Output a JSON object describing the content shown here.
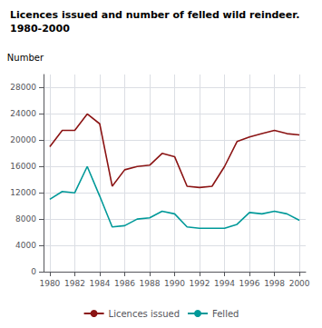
{
  "chart_data": {
    "type": "line",
    "title": "Licences issued and number of felled wild reindeer.",
    "subtitle": "1980-2000",
    "ylabel": "Number",
    "x": [
      1980,
      1981,
      1982,
      1983,
      1984,
      1985,
      1986,
      1987,
      1988,
      1989,
      1990,
      1991,
      1992,
      1993,
      1994,
      1995,
      1996,
      1997,
      1998,
      1999,
      2000
    ],
    "series": [
      {
        "name": "Licences issued",
        "color": "#8B1414",
        "values": [
          19000,
          21500,
          21500,
          24000,
          22500,
          13000,
          15500,
          16000,
          16200,
          18000,
          17500,
          13000,
          12800,
          13000,
          16000,
          19800,
          20500,
          21000,
          21500,
          21000,
          20800
        ]
      },
      {
        "name": "Felled",
        "color": "#009999",
        "values": [
          11000,
          12200,
          12000,
          16000,
          11500,
          6800,
          7000,
          8000,
          8200,
          9200,
          8800,
          6800,
          6600,
          6600,
          6600,
          7200,
          9000,
          8800,
          9200,
          8800,
          7800
        ]
      }
    ],
    "xlim": [
      1979.5,
      2000.5
    ],
    "xticks": [
      1980,
      1982,
      1984,
      1986,
      1988,
      1990,
      1992,
      1994,
      1996,
      1998,
      2000
    ],
    "ylim": [
      0,
      30000
    ],
    "yticks": [
      0,
      4000,
      8000,
      12000,
      16000,
      20000,
      24000,
      28000
    ],
    "grid": true,
    "legend": "bottom"
  }
}
